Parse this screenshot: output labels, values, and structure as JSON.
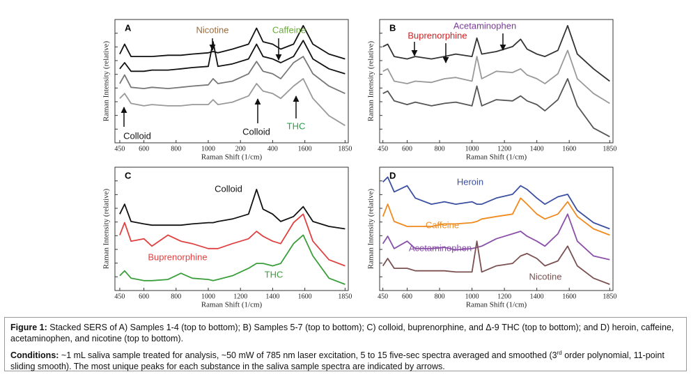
{
  "chart_data": [
    {
      "type": "line",
      "title": "A",
      "xlabel": "Raman Shift (1/cm)",
      "ylabel": "Raman Intensity (relative)",
      "x": [
        450,
        480,
        520,
        600,
        650,
        750,
        830,
        900,
        1000,
        1030,
        1060,
        1150,
        1250,
        1300,
        1340,
        1400,
        1450,
        1530,
        1590,
        1650,
        1750,
        1850
      ],
      "xlim": [
        420,
        1870
      ],
      "ylim": [
        0,
        100
      ],
      "xticks": [
        450,
        600,
        800,
        1000,
        {
          "value": 1200,
          "label": "200"
        },
        {
          "value": 1400,
          "label": "400"
        },
        1600,
        1850
      ],
      "series": [
        {
          "color": "#111111",
          "values": [
            72,
            80,
            70,
            70,
            70,
            71,
            71,
            72,
            73,
            74,
            73,
            76,
            80,
            93,
            82,
            80,
            76,
            80,
            95,
            80,
            72,
            68
          ]
        },
        {
          "color": "#111111",
          "values": [
            60,
            65,
            58,
            58,
            59,
            59,
            60,
            61,
            62,
            82,
            62,
            64,
            68,
            80,
            70,
            68,
            65,
            70,
            83,
            68,
            60,
            56
          ]
        },
        {
          "color": "#777777",
          "values": [
            48,
            55,
            45,
            44,
            45,
            44,
            45,
            46,
            47,
            52,
            48,
            50,
            56,
            66,
            58,
            56,
            52,
            65,
            70,
            56,
            46,
            40
          ]
        },
        {
          "color": "#999999",
          "values": [
            36,
            40,
            32,
            30,
            31,
            30,
            30,
            31,
            31,
            35,
            31,
            33,
            38,
            48,
            42,
            40,
            36,
            46,
            52,
            36,
            22,
            14
          ]
        }
      ],
      "annotations": [
        {
          "text": "Nicotine",
          "color": "#9a6a3a"
        },
        {
          "text": "Caffeine",
          "color": "#6aaa3a"
        },
        {
          "text": "Colloid",
          "color": "#111111"
        },
        {
          "text": "Colloid",
          "color": "#111111"
        },
        {
          "text": "THC",
          "color": "#2a9a4a"
        }
      ]
    },
    {
      "type": "line",
      "title": "B",
      "xlabel": "Raman Shift (1/cm)",
      "ylabel": "Raman Intensity (relative)",
      "x": [
        450,
        480,
        520,
        600,
        650,
        750,
        830,
        900,
        1000,
        1030,
        1060,
        1150,
        1250,
        1300,
        1340,
        1400,
        1450,
        1530,
        1590,
        1650,
        1750,
        1850
      ],
      "xlim": [
        430,
        1870
      ],
      "ylim": [
        0,
        100
      ],
      "xticks": [
        450,
        600,
        800,
        1000,
        1200,
        1400,
        1600,
        1850
      ],
      "series": [
        {
          "color": "#333333",
          "values": [
            78,
            80,
            70,
            68,
            70,
            68,
            70,
            72,
            70,
            85,
            72,
            74,
            78,
            84,
            76,
            72,
            70,
            75,
            95,
            72,
            60,
            50
          ]
        },
        {
          "color": "#999999",
          "values": [
            58,
            60,
            50,
            48,
            50,
            49,
            52,
            53,
            50,
            70,
            52,
            58,
            57,
            60,
            55,
            52,
            48,
            56,
            75,
            52,
            40,
            32
          ]
        },
        {
          "color": "#555555",
          "values": [
            40,
            42,
            34,
            31,
            33,
            30,
            32,
            33,
            30,
            46,
            30,
            35,
            34,
            38,
            34,
            31,
            26,
            35,
            52,
            30,
            12,
            5
          ]
        }
      ],
      "annotations": [
        {
          "text": "Acetaminophen",
          "color": "#7a3a9a"
        },
        {
          "text": "Buprenorphine",
          "color": "#d02020"
        }
      ]
    },
    {
      "type": "line",
      "title": "C",
      "xlabel": "Raman Shift (1/cm)",
      "ylabel": "Raman Intensity (relative)",
      "x": [
        450,
        480,
        520,
        600,
        650,
        750,
        830,
        900,
        1000,
        1030,
        1060,
        1150,
        1250,
        1300,
        1340,
        1400,
        1450,
        1530,
        1590,
        1650,
        1750,
        1850
      ],
      "xlim": [
        420,
        1870
      ],
      "ylim": [
        0,
        100
      ],
      "xticks": [
        450,
        600,
        800,
        1000,
        1200,
        1400,
        1600,
        1850
      ],
      "series": [
        {
          "name": "Colloid",
          "color": "#111111",
          "values": [
            62,
            70,
            56,
            54,
            53,
            53,
            53,
            54,
            55,
            55,
            56,
            58,
            62,
            82,
            66,
            62,
            56,
            60,
            68,
            56,
            52,
            50
          ]
        },
        {
          "name": "Buprenorphine",
          "color": "#e04040",
          "values": [
            45,
            55,
            40,
            42,
            36,
            45,
            40,
            38,
            34,
            34,
            34,
            38,
            42,
            48,
            44,
            40,
            38,
            55,
            62,
            40,
            25,
            20
          ]
        },
        {
          "name": "THC",
          "color": "#3a9e3a",
          "values": [
            12,
            16,
            10,
            8,
            8,
            9,
            14,
            10,
            9,
            8,
            9,
            12,
            18,
            22,
            22,
            20,
            22,
            38,
            45,
            28,
            10,
            5
          ]
        }
      ]
    },
    {
      "type": "line",
      "title": "D",
      "xlabel": "Raman Shift (1/cm)",
      "ylabel": "Raman Intensity (relative)",
      "x": [
        450,
        480,
        520,
        600,
        650,
        750,
        830,
        900,
        1000,
        1030,
        1060,
        1150,
        1250,
        1300,
        1340,
        1400,
        1450,
        1530,
        1590,
        1650,
        1750,
        1850
      ],
      "xlim": [
        430,
        1870
      ],
      "ylim": [
        0,
        100
      ],
      "xticks": [
        450,
        600,
        800,
        1000,
        1200,
        1400,
        1600,
        1850
      ],
      "series": [
        {
          "name": "Heroin",
          "color": "#3a4fa0",
          "values": [
            88,
            92,
            80,
            85,
            75,
            70,
            72,
            70,
            72,
            70,
            70,
            75,
            78,
            85,
            82,
            75,
            70,
            76,
            78,
            65,
            55,
            50
          ]
        },
        {
          "name": "Caffeine",
          "color": "#f08a1e",
          "values": [
            60,
            70,
            56,
            52,
            52,
            52,
            54,
            54,
            55,
            56,
            58,
            60,
            62,
            75,
            70,
            62,
            58,
            62,
            72,
            60,
            50,
            45
          ]
        },
        {
          "name": "Acetaminophen",
          "color": "#8a50a8",
          "values": [
            38,
            44,
            34,
            40,
            34,
            34,
            35,
            33,
            34,
            35,
            36,
            42,
            46,
            48,
            44,
            40,
            36,
            46,
            62,
            40,
            28,
            25
          ]
        },
        {
          "name": "Nicotine",
          "color": "#7a5050",
          "values": [
            20,
            26,
            18,
            18,
            16,
            16,
            16,
            15,
            15,
            40,
            15,
            20,
            22,
            28,
            30,
            26,
            20,
            24,
            36,
            20,
            10,
            5
          ]
        }
      ]
    }
  ],
  "caption": {
    "figure_label": "Figure 1:",
    "figure_text": " Stacked SERS of A) Samples 1-4 (top to bottom); B) Samples 5-7 (top to bottom); C) colloid, buprenorphine, and Δ-9 THC (top to bottom); and D) heroin, caffeine, acetaminophen, and nicotine (top to bottom).",
    "conditions_label": "Conditions:",
    "conditions_text_1": " ~1 mL saliva sample treated for analysis, ~50 mW of 785 nm laser excitation, 5 to 15 five-sec spectra averaged and smoothed (3",
    "conditions_sup": "rd",
    "conditions_text_2": " order polynomial, 11-point sliding smooth). The most unique peaks for each substance in the saliva sample spectra are indicated by arrows."
  }
}
